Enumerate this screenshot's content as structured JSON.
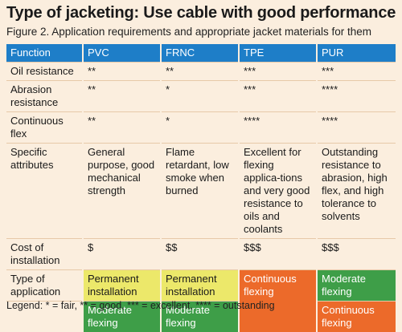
{
  "title": "Type of jacketing: Use cable with good performance",
  "caption": "Figure 2. Application requirements and appropriate jacket materials for them",
  "table": {
    "headers": [
      "Function",
      "PVC",
      "FRNC",
      "TPE",
      "PUR"
    ],
    "rows": [
      {
        "label": "Oil resistance",
        "cells": [
          "**",
          "**",
          "***",
          "***"
        ]
      },
      {
        "label": "Abrasion resistance",
        "cells": [
          "**",
          "*",
          "***",
          "****"
        ]
      },
      {
        "label": "Continuous flex",
        "cells": [
          "**",
          "*",
          "****",
          "****"
        ]
      },
      {
        "label": "Specific attributes",
        "cells": [
          "General purpose, good mechanical strength",
          "Flame retardant, low smoke when burned",
          "Excellent for flexing applica-tions and very good resistance to oils and coolants",
          "Outstanding resistance to abrasion, high flex, and high tolerance to solvents"
        ]
      },
      {
        "label": "Cost of installation",
        "cells": [
          "$",
          "$$",
          "$$$",
          "$$$"
        ]
      }
    ],
    "application": {
      "label": "Type of application",
      "pvc": [
        "Permanent installation",
        "Moderate flexing"
      ],
      "frnc": [
        "Permanent installation",
        "Moderate flexing"
      ],
      "tpe": [
        "Continuous flexing"
      ],
      "pur": [
        "Moderate flexing",
        "Continuous flexing"
      ]
    },
    "colors": {
      "header": "#1e7ec8",
      "permanent": "#ece86a",
      "moderate": "#3e9e48",
      "continuous": "#ec6a2a"
    }
  },
  "legend": "Legend: * = fair, ** = good, *** = excellent, **** = outstanding"
}
